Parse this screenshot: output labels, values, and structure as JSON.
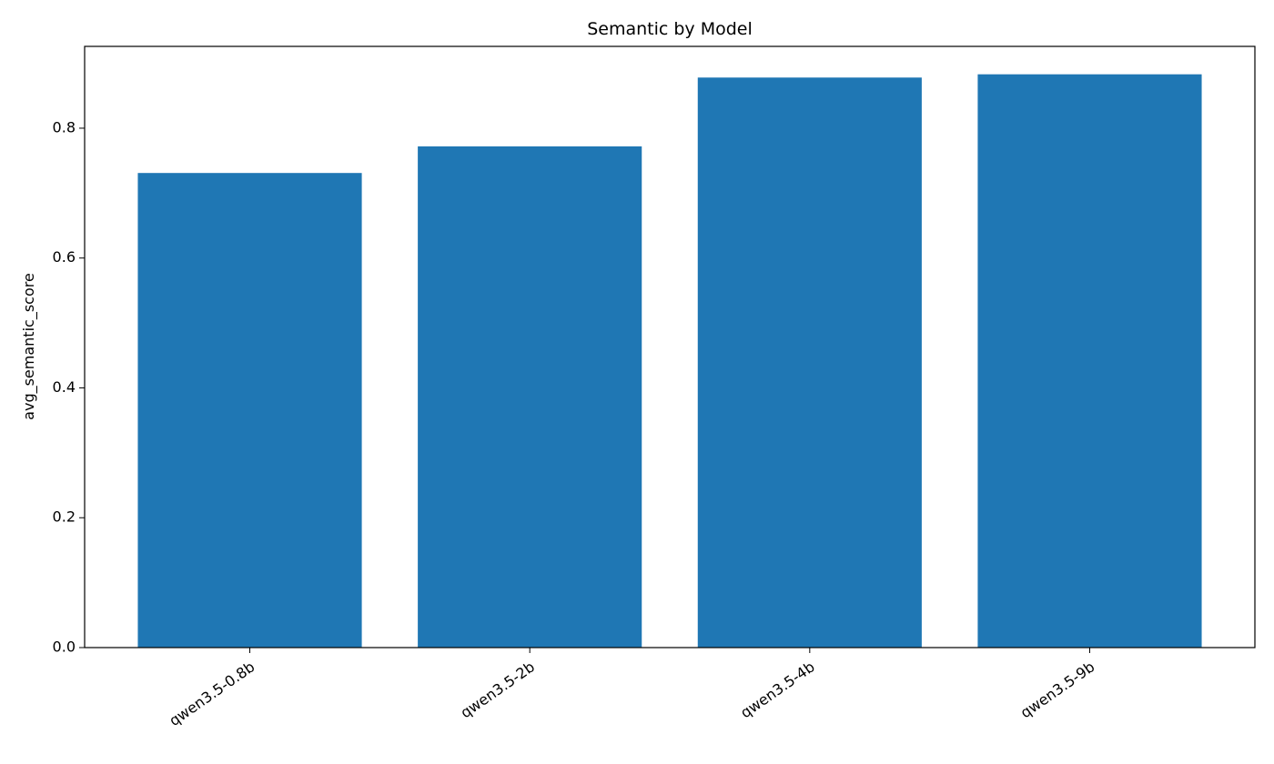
{
  "chart_data": {
    "type": "bar",
    "title": "Semantic by Model",
    "y_label": "avg_semantic_score",
    "categories": [
      "qwen3.5-0.8b",
      "qwen3.5-2b",
      "qwen3.5-4b",
      "qwen3.5-9b"
    ],
    "values": [
      0.731,
      0.772,
      0.878,
      0.883
    ],
    "color": "#1f77b4",
    "ylim": [
      0,
      0.926
    ],
    "yticks": [
      {
        "value": 0,
        "label": "0.0"
      },
      0.2,
      0.4,
      0.6,
      0.8
    ],
    "grid": false
  }
}
